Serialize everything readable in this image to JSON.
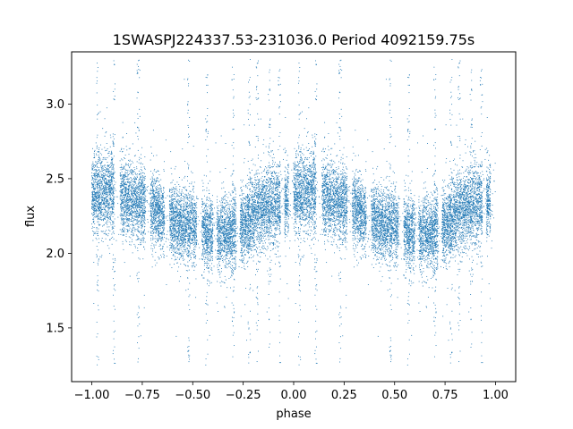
{
  "chart_data": {
    "type": "scatter",
    "title": "1SWASPJ224337.53-231036.0 Period 4092159.75s",
    "xlabel": "phase",
    "ylabel": "flux",
    "xlim": [
      -1.1,
      1.1
    ],
    "ylim": [
      1.14,
      3.35
    ],
    "xticks": [
      -1.0,
      -0.75,
      -0.5,
      -0.25,
      0.0,
      0.25,
      0.5,
      0.75,
      1.0
    ],
    "xtick_labels": [
      "−1.00",
      "−0.75",
      "−0.50",
      "−0.25",
      "0.00",
      "0.25",
      "0.50",
      "0.75",
      "1.00"
    ],
    "yticks": [
      1.5,
      2.0,
      2.5,
      3.0
    ],
    "ytick_labels": [
      "1.5",
      "2.0",
      "2.5",
      "3.0"
    ],
    "grid": false,
    "legend": "none",
    "series_color": "#1f77b4",
    "marker_size": 0.9,
    "phase_folded_duplicate_offset": 1.0,
    "light_curve_profile": {
      "phase": [
        0.0,
        0.08,
        0.15,
        0.25,
        0.32,
        0.38,
        0.42,
        0.5,
        0.55,
        0.62,
        0.68,
        0.75,
        0.8,
        0.9,
        1.0
      ],
      "flux_center": [
        2.4,
        2.4,
        2.38,
        2.34,
        2.28,
        2.22,
        2.2,
        2.18,
        2.16,
        2.12,
        2.14,
        2.18,
        2.27,
        2.32,
        2.4
      ],
      "flux_spread": [
        0.12,
        0.14,
        0.13,
        0.13,
        0.12,
        0.12,
        0.12,
        0.12,
        0.12,
        0.12,
        0.12,
        0.12,
        0.12,
        0.13,
        0.12
      ]
    },
    "observing_gaps_phase": [
      [
        0.11,
        0.14
      ],
      [
        0.265,
        0.29
      ],
      [
        0.36,
        0.385
      ],
      [
        0.52,
        0.545
      ],
      [
        0.6,
        0.62
      ],
      [
        0.715,
        0.735
      ],
      [
        0.935,
        0.955
      ],
      [
        0.975,
        1.0
      ]
    ],
    "outlier_spikes_phase": [
      0.03,
      0.11,
      0.23,
      0.48,
      0.57,
      0.7,
      0.78,
      0.82,
      0.88,
      0.93
    ],
    "outlier_flux_range": [
      1.25,
      3.3
    ],
    "point_count_per_cycle": 9000
  }
}
